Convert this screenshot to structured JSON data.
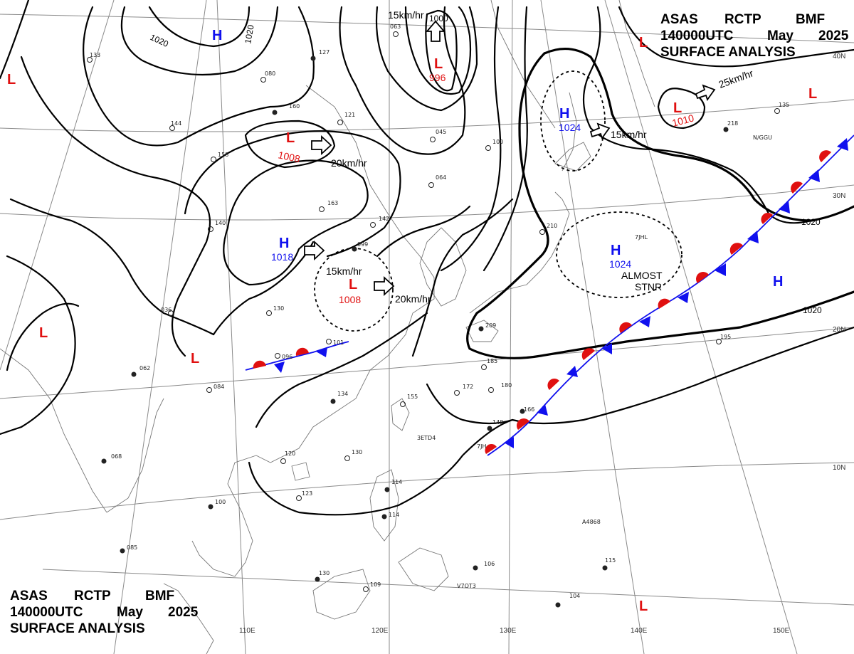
{
  "header": {
    "center": "ASAS",
    "station": "RCTP",
    "office": "BMF",
    "time": "140000UTC",
    "month": "May",
    "year": "2025",
    "product": "SURFACE ANALYSIS"
  },
  "lon_labels": [
    "110E",
    "120E",
    "130E",
    "140E",
    "150E"
  ],
  "lat_labels": [
    "40N",
    "30N",
    "20N",
    "10N"
  ],
  "isobar_labels": [
    "1020",
    "1020",
    "1000",
    "1020",
    "1020"
  ],
  "pressure_centers": [
    {
      "type": "H",
      "value": "",
      "color": "#1010ee"
    },
    {
      "type": "H",
      "value": "1018",
      "color": "#1010ee"
    },
    {
      "type": "H",
      "value": "1024",
      "color": "#1010ee"
    },
    {
      "type": "H",
      "value": "1024",
      "color": "#1010ee"
    },
    {
      "type": "H",
      "value": "",
      "color": "#1010ee"
    },
    {
      "type": "L",
      "value": "996",
      "color": "#e01010"
    },
    {
      "type": "L",
      "value": "1008",
      "color": "#e01010"
    },
    {
      "type": "L",
      "value": "1008",
      "color": "#e01010"
    },
    {
      "type": "L",
      "value": "1010",
      "color": "#e01010"
    },
    {
      "type": "L",
      "value": "",
      "color": "#e01010"
    },
    {
      "type": "L",
      "value": "",
      "color": "#e01010"
    },
    {
      "type": "L",
      "value": "",
      "color": "#e01010"
    },
    {
      "type": "L",
      "value": "",
      "color": "#e01010"
    },
    {
      "type": "L",
      "value": "",
      "color": "#e01010"
    }
  ],
  "motion_labels": [
    "15km/hr",
    "20km/hr",
    "15km/hr",
    "20km/hr",
    "15km/hr",
    "25km/hr"
  ],
  "notes": {
    "line1": "ALMOST",
    "line2": "STNR"
  },
  "station_numbers": [
    "063",
    "127",
    "080",
    "160",
    "121",
    "045",
    "100",
    "158",
    "163",
    "099",
    "134",
    "155",
    "130",
    "123",
    "100",
    "084",
    "096",
    "101",
    "036",
    "062",
    "068",
    "085",
    "114",
    "130",
    "109",
    "104",
    "106",
    "115",
    "148",
    "166",
    "180",
    "172",
    "185",
    "209",
    "210",
    "218",
    "195",
    "135",
    "144",
    "133",
    "064",
    "142",
    "114",
    "120",
    "140",
    "130"
  ],
  "station_tags": [
    "N/GGU",
    "7JHL",
    "3ETD4",
    "A4868",
    "7JH",
    "V7OT3"
  ],
  "colors": {
    "high": "#1010ee",
    "low": "#e01010",
    "warm_front": "#e01010",
    "cold_front": "#1010ee",
    "isobar": "#000000",
    "coast": "#777777",
    "grid": "#888888"
  }
}
